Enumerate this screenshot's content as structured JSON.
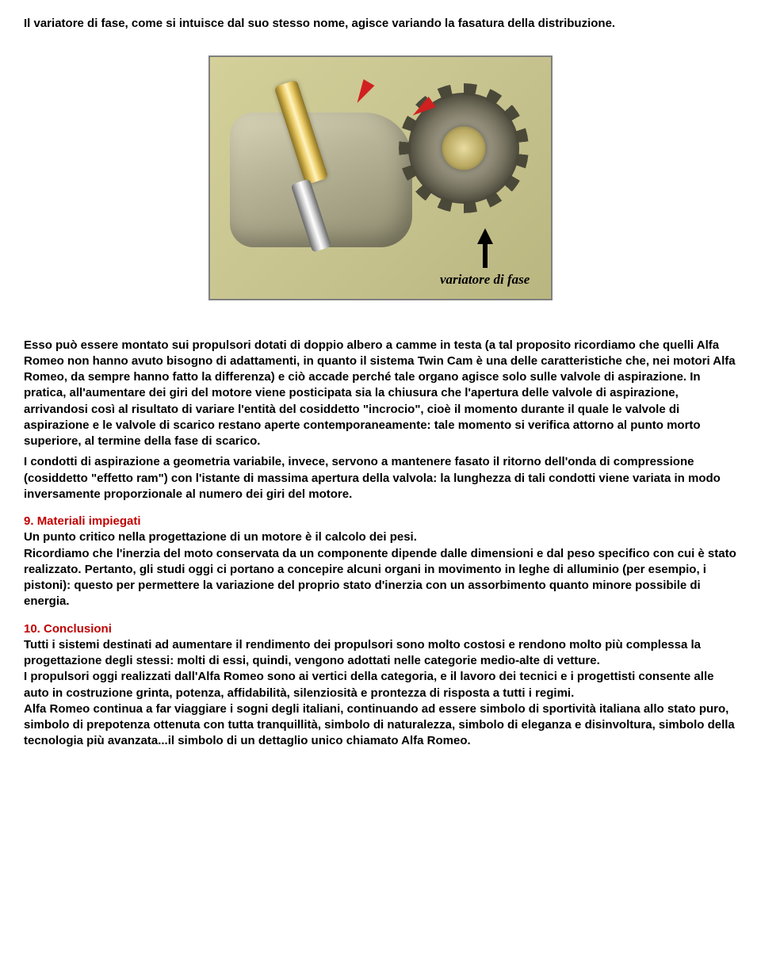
{
  "intro": "Il variatore di fase, come si intuisce dal suo stesso nome, agisce variando la fasatura della distribuzione.",
  "figure_caption": "variatore di fase",
  "p1": "Esso può essere montato sui propulsori dotati di doppio albero a camme in testa (a tal proposito ricordiamo che quelli Alfa Romeo non hanno avuto bisogno di adattamenti, in quanto il sistema Twin Cam è una delle caratteristiche che, nei motori Alfa Romeo, da sempre hanno fatto la differenza) e ciò accade perché tale organo agisce solo sulle valvole di aspirazione. In pratica, all'aumentare dei giri del motore viene posticipata sia la chiusura che l'apertura delle valvole di aspirazione, arrivandosi così al risultato di variare l'entità del cosiddetto \"incrocio\", cioè il momento durante il quale le valvole di aspirazione e le valvole di scarico restano aperte contemporaneamente: tale momento si verifica attorno al punto morto superiore, al termine della fase di scarico.",
  "p2": "I condotti di aspirazione a geometria variabile, invece, servono a mantenere fasato il ritorno dell'onda di compressione (cosiddetto \"effetto ram\") con l'istante di massima apertura della valvola: la lunghezza di tali condotti viene variata in modo inversamente proporzionale al numero dei giri del motore.",
  "sec9_num": "9.",
  "sec9_title": "Materiali impiegati",
  "sec9_p1": "Un punto critico nella progettazione di un motore è il calcolo dei pesi.",
  "sec9_p2": "Ricordiamo che l'inerzia del moto conservata da un componente dipende dalle dimensioni e dal peso specifico con cui è stato realizzato. Pertanto, gli studi oggi ci portano a concepire alcuni organi in movimento in leghe di alluminio (per esempio, i pistoni): questo per permettere la variazione del proprio stato d'inerzia con un assorbimento quanto minore possibile di energia.",
  "sec10_num": "10.",
  "sec10_title": "Conclusioni",
  "sec10_p1": "Tutti i sistemi destinati ad aumentare il rendimento dei propulsori sono molto costosi e rendono molto più complessa la progettazione degli stessi: molti di essi, quindi, vengono adottati nelle categorie medio-alte di vetture.",
  "sec10_p2": "I propulsori oggi realizzati dall'Alfa Romeo sono ai vertici della categoria, e il lavoro dei tecnici e i progettisti consente alle auto in costruzione grinta, potenza, affidabilità, silenziosità e prontezza di risposta a tutti i regimi.",
  "sec10_p3": "Alfa Romeo continua a far viaggiare i sogni degli italiani, continuando ad essere simbolo di sportività italiana allo stato puro, simbolo di prepotenza ottenuta con tutta tranquillità, simbolo di naturalezza, simbolo di eleganza e disinvoltura, simbolo della tecnologia più avanzata...il simbolo di un dettaglio unico chiamato Alfa Romeo."
}
